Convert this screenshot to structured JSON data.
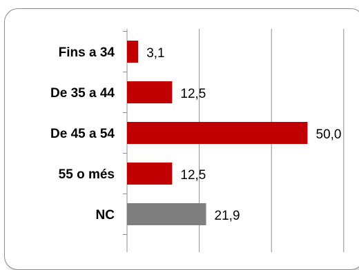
{
  "chart_data": {
    "type": "bar",
    "orientation": "horizontal",
    "categories": [
      "Fins a 34",
      "De 35 a 44",
      "De 45 a 54",
      "55 o més",
      "NC"
    ],
    "values": [
      3.1,
      12.5,
      50.0,
      12.5,
      21.9
    ],
    "value_labels": [
      "3,1",
      "12,5",
      "50,0",
      "12,5",
      "21,9"
    ],
    "xlim": [
      0,
      60
    ],
    "grid": true,
    "colors": [
      "#c00000",
      "#c00000",
      "#c00000",
      "#c00000",
      "#7f7f7f"
    ]
  }
}
